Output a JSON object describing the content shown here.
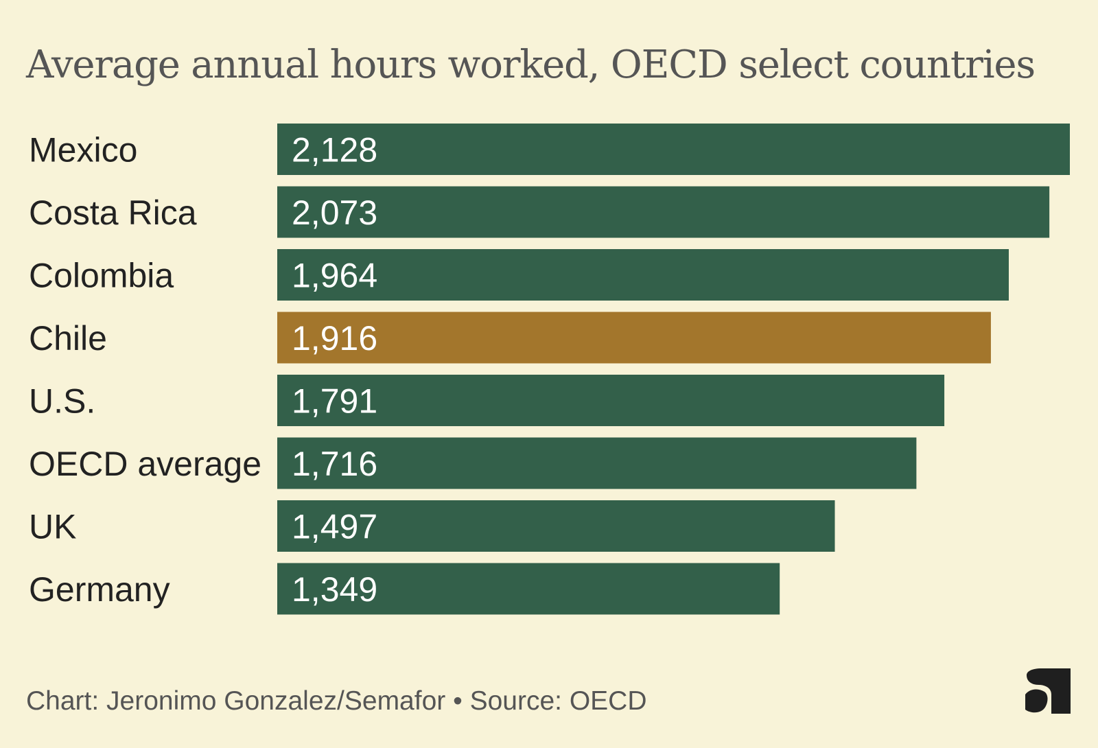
{
  "chart_data": {
    "type": "bar",
    "orientation": "horizontal",
    "title": "Average annual hours worked, OECD select countries",
    "categories": [
      "Mexico",
      "Costa Rica",
      "Colombia",
      "Chile",
      "U.S.",
      "OECD average",
      "UK",
      "Germany"
    ],
    "values": [
      2128,
      2073,
      1964,
      1916,
      1791,
      1716,
      1497,
      1349
    ],
    "value_labels": [
      "2,128",
      "2,073",
      "1,964",
      "1,916",
      "1,791",
      "1,716",
      "1,497",
      "1,349"
    ],
    "highlight": "Chile",
    "xlim": [
      0,
      2128
    ],
    "grid": false,
    "legend": "none",
    "colors": {
      "bar": "#33604a",
      "highlight": "#a3762c",
      "background": "#f8f3d8",
      "value_text": "#ffffff",
      "category_text": "#222222"
    }
  },
  "footer": {
    "credit": "Chart: Jeronimo Gonzalez/Semafor • Source: OECD"
  },
  "logo": {
    "icon": "semafor-s-logo",
    "color": "#1f1f1f"
  }
}
